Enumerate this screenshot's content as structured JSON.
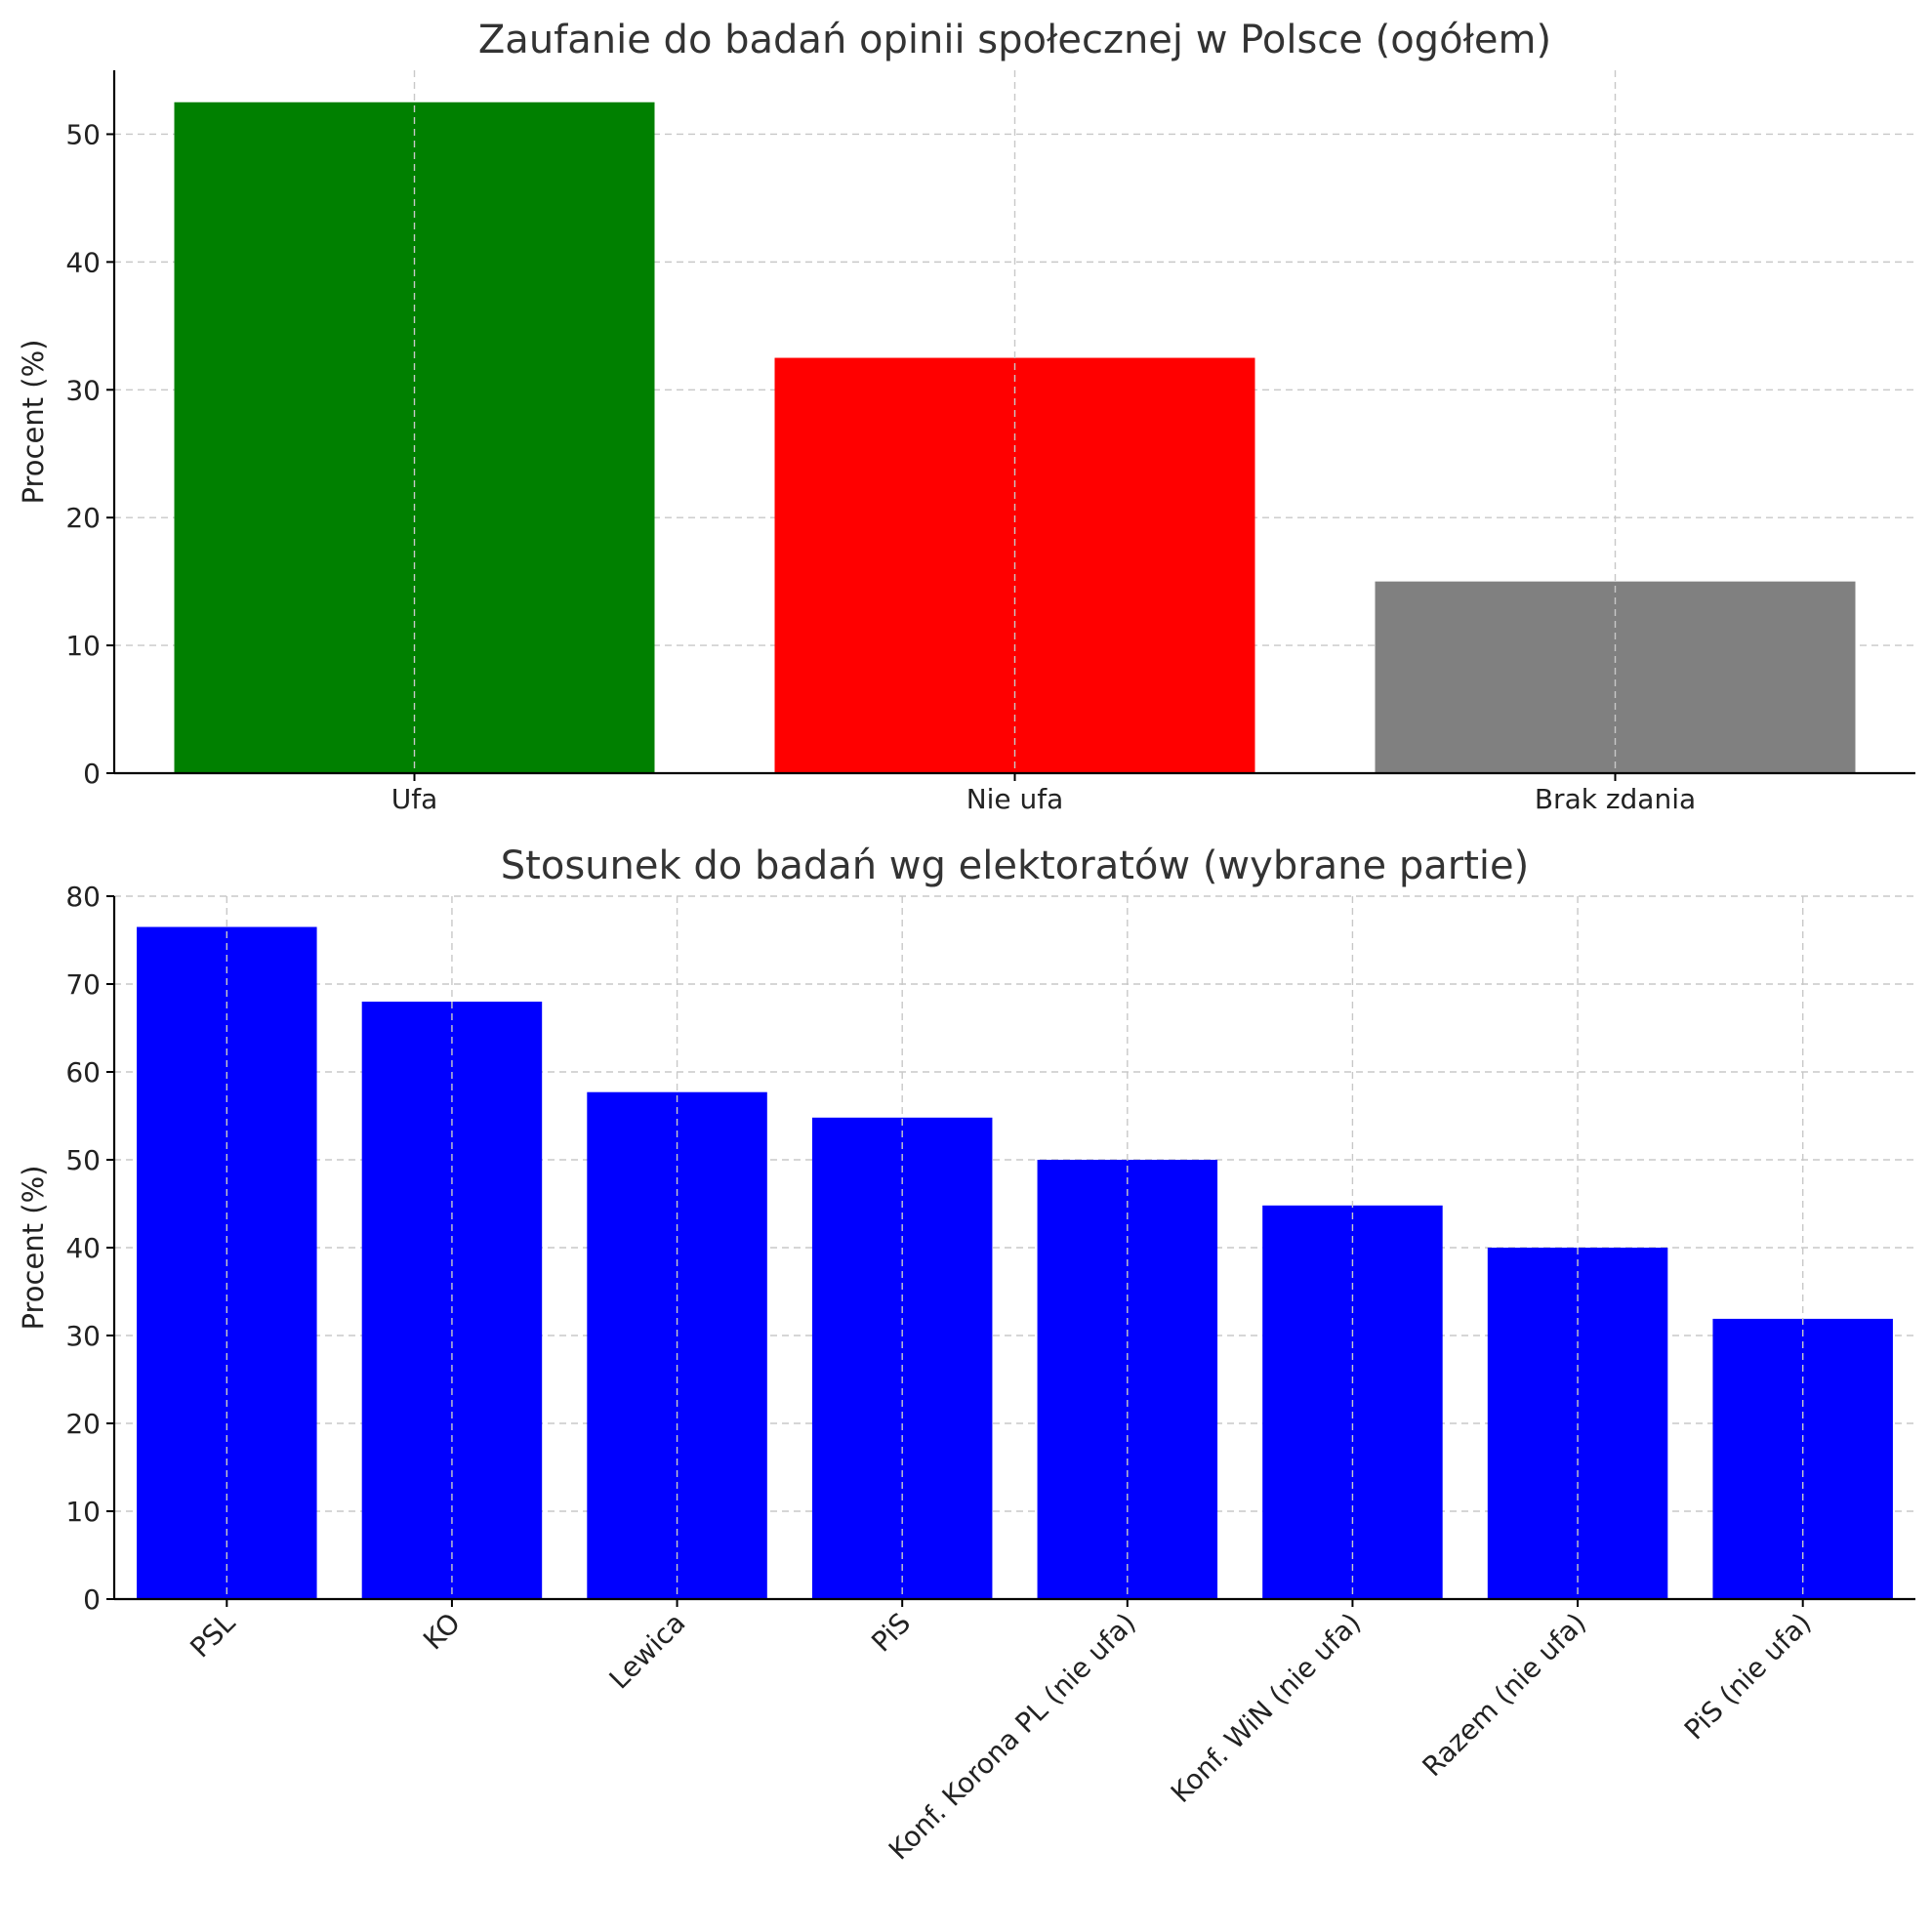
{
  "chart_data": [
    {
      "type": "bar",
      "title": "Zaufanie do badań opinii społecznej w Polsce (ogółem)",
      "xlabel": "",
      "ylabel": "Procent (%)",
      "categories": [
        "Ufa",
        "Nie ufa",
        "Brak zdania"
      ],
      "values": [
        52.5,
        32.5,
        15
      ],
      "colors": [
        "#008000",
        "#ff0000",
        "#808080"
      ],
      "ylim": [
        0,
        55
      ],
      "yticks": [
        0,
        10,
        20,
        30,
        40,
        50
      ],
      "grid": true,
      "rotate_xticks": false
    },
    {
      "type": "bar",
      "title": "Stosunek do badań wg elektoratów (wybrane partie)",
      "xlabel": "",
      "ylabel": "Procent (%)",
      "categories": [
        "PSL",
        "KO",
        "Lewica",
        "PiS",
        "Konf. Korona PL (nie ufa)",
        "Konf. WiN (nie ufa)",
        "Razem (nie ufa)",
        "PiS (nie ufa)"
      ],
      "values": [
        76.5,
        68,
        57.7,
        54.8,
        50,
        44.8,
        40,
        31.9
      ],
      "colors": [
        "#0000ff",
        "#0000ff",
        "#0000ff",
        "#0000ff",
        "#0000ff",
        "#0000ff",
        "#0000ff",
        "#0000ff"
      ],
      "ylim": [
        0,
        80
      ],
      "yticks": [
        0,
        10,
        20,
        30,
        40,
        50,
        60,
        70,
        80
      ],
      "grid": true,
      "rotate_xticks": true
    }
  ]
}
